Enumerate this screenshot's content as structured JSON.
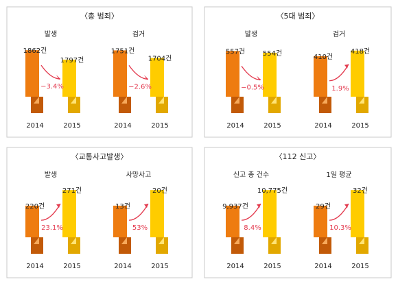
{
  "colors": {
    "border": "#c9c9c9",
    "orange": "#ee7c10",
    "orange_dark": "#c25a08",
    "orange_fold": "#f7a95a",
    "yellow": "#ffcc00",
    "yellow_dark": "#e2a800",
    "yellow_fold": "#ffe375",
    "arrow": "#e33a4e",
    "text": "#222222"
  },
  "chart_data": [
    {
      "type": "bar",
      "title": "〈총 범죄〉",
      "groups": [
        {
          "label": "발생",
          "change": "−3.4%",
          "categories": [
            "2014",
            "2015"
          ],
          "values": [
            1862,
            1797
          ],
          "value_labels": [
            "1862건",
            "1797건"
          ]
        },
        {
          "label": "검거",
          "change": "−2.6%",
          "categories": [
            "2014",
            "2015"
          ],
          "values": [
            1751,
            1704
          ],
          "value_labels": [
            "1751건",
            "1704건"
          ]
        }
      ]
    },
    {
      "type": "bar",
      "title": "〈5대 범죄〉",
      "groups": [
        {
          "label": "발생",
          "change": "−0.5%",
          "categories": [
            "2014",
            "2015"
          ],
          "values": [
            557,
            554
          ],
          "value_labels": [
            "557건",
            "554건"
          ]
        },
        {
          "label": "검거",
          "change": "1.9%",
          "categories": [
            "2014",
            "2015"
          ],
          "values": [
            410,
            418
          ],
          "value_labels": [
            "410건",
            "418건"
          ]
        }
      ]
    },
    {
      "type": "bar",
      "title": "〈교통사고발생〉",
      "groups": [
        {
          "label": "발생",
          "change": "23.1%",
          "categories": [
            "2014",
            "2015"
          ],
          "values": [
            220,
            271
          ],
          "value_labels": [
            "220건",
            "271건"
          ]
        },
        {
          "label": "사망사고",
          "change": "53%",
          "categories": [
            "2014",
            "2015"
          ],
          "values": [
            13,
            20
          ],
          "value_labels": [
            "13건",
            "20건"
          ]
        }
      ]
    },
    {
      "type": "bar",
      "title": "〈112 신고〉",
      "groups": [
        {
          "label": "신고 총 건수",
          "change": "8.4%",
          "categories": [
            "2014",
            "2015"
          ],
          "values": [
            9937,
            10775
          ],
          "value_labels": [
            "9,937건",
            "10,775건"
          ]
        },
        {
          "label": "1일 평균",
          "change": "10.3%",
          "categories": [
            "2014",
            "2015"
          ],
          "values": [
            29,
            32
          ],
          "value_labels": [
            "29건",
            "32건"
          ]
        }
      ]
    }
  ]
}
